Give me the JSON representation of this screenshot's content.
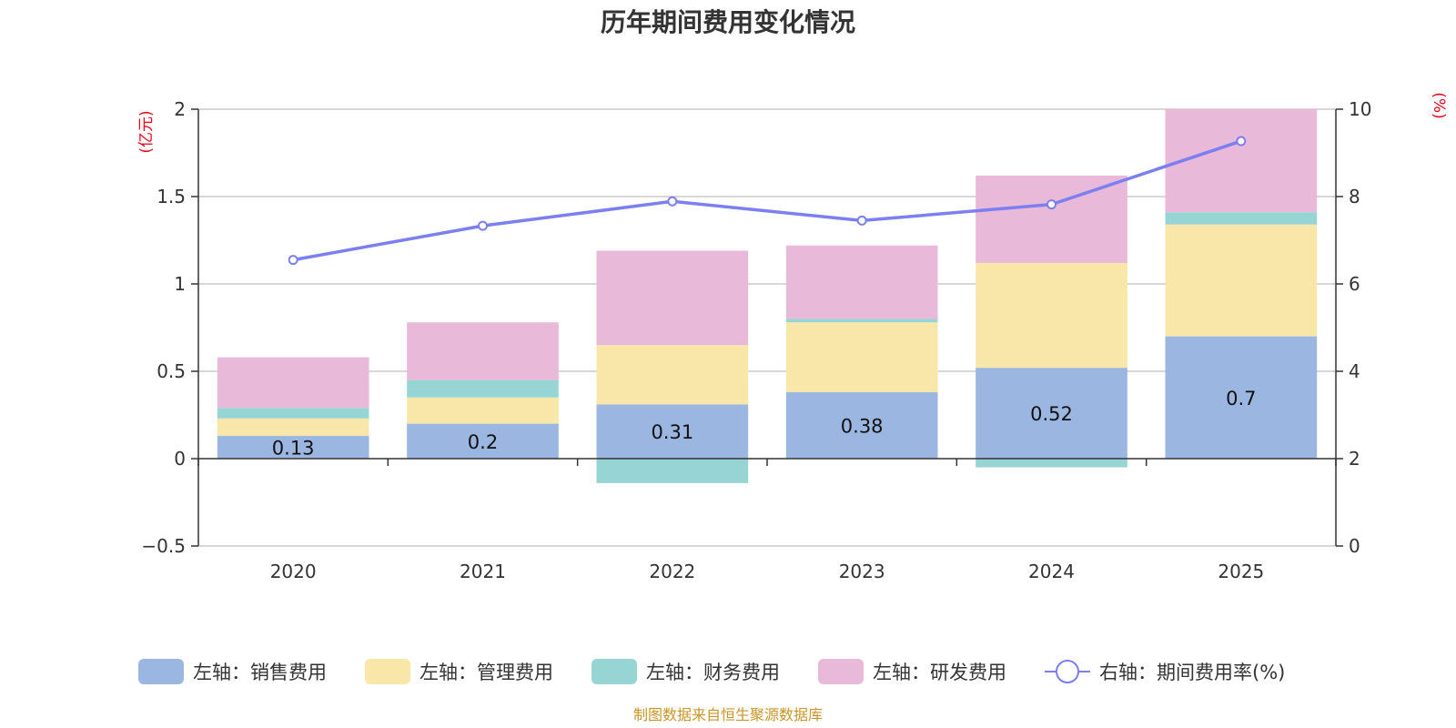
{
  "chart_data": {
    "type": "bar",
    "title": "历年期间费用变化情况",
    "categories": [
      "2020",
      "2021",
      "2022",
      "2023",
      "2024",
      "2025"
    ],
    "left_axis": {
      "unit": "(亿元)",
      "ylim": [
        -0.5,
        2
      ],
      "ticks": [
        -0.5,
        0,
        0.5,
        1,
        1.5,
        2
      ]
    },
    "right_axis": {
      "unit": "(%)",
      "ylim": [
        0,
        10
      ],
      "ticks": [
        0,
        2,
        4,
        6,
        8,
        10
      ]
    },
    "series": [
      {
        "name": "左轴：销售费用",
        "axis": "left",
        "kind": "stack",
        "color": "#9bb7e1",
        "values": [
          0.13,
          0.2,
          0.31,
          0.38,
          0.52,
          0.7
        ],
        "labels": [
          "0.13",
          "0.2",
          "0.31",
          "0.38",
          "0.52",
          "0.7"
        ]
      },
      {
        "name": "左轴：管理费用",
        "axis": "left",
        "kind": "stack",
        "color": "#f8e7a8",
        "values": [
          0.1,
          0.15,
          0.34,
          0.4,
          0.6,
          0.64
        ]
      },
      {
        "name": "左轴：财务费用",
        "axis": "left",
        "kind": "stack",
        "color": "#97d5d4",
        "values": [
          0.06,
          0.1,
          -0.14,
          0.02,
          -0.05,
          0.07
        ]
      },
      {
        "name": "左轴：研发费用",
        "axis": "left",
        "kind": "stack",
        "color": "#e8b9d9",
        "values": [
          0.29,
          0.33,
          0.54,
          0.42,
          0.5,
          0.59
        ]
      },
      {
        "name": "右轴：期间费用率(%)",
        "axis": "right",
        "kind": "line",
        "color": "#7b7ff0",
        "values": [
          6.55,
          7.33,
          7.89,
          7.45,
          7.82,
          9.27
        ]
      }
    ],
    "source": "制图数据来自恒生聚源数据库"
  }
}
